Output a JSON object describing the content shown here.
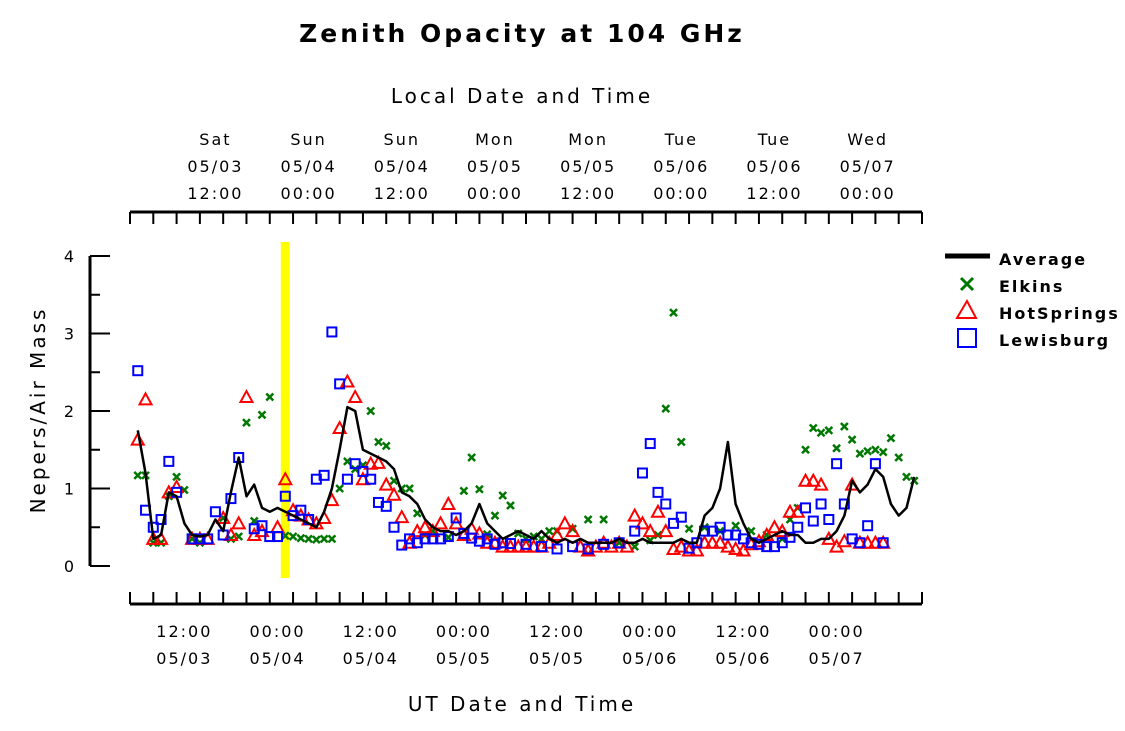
{
  "chart_data": {
    "type": "line",
    "title": "Zenith Opacity at 104 GHz",
    "xlabel": "UT Date and Time",
    "x2label": "Local Date and Time",
    "ylabel": "Nepers/Air Mass",
    "ylim": [
      0,
      4
    ],
    "yticks": [
      "0",
      "1",
      "2",
      "3",
      "4"
    ],
    "xlim": [
      "2003-05-03T05:00",
      "2003-05-07T11:00"
    ],
    "x_ticks": [
      {
        "t": "2003-05-03T12:00",
        "line1": "12:00",
        "line2": "05/03"
      },
      {
        "t": "2003-05-04T00:00",
        "line1": "00:00",
        "line2": "05/04"
      },
      {
        "t": "2003-05-04T12:00",
        "line1": "12:00",
        "line2": "05/04"
      },
      {
        "t": "2003-05-05T00:00",
        "line1": "00:00",
        "line2": "05/05"
      },
      {
        "t": "2003-05-05T12:00",
        "line1": "12:00",
        "line2": "05/05"
      },
      {
        "t": "2003-05-06T00:00",
        "line1": "00:00",
        "line2": "05/06"
      },
      {
        "t": "2003-05-06T12:00",
        "line1": "12:00",
        "line2": "05/06"
      },
      {
        "t": "2003-05-07T00:00",
        "line1": "00:00",
        "line2": "05/07"
      }
    ],
    "x2_ticks": [
      {
        "t": "2003-05-03T16:00",
        "line1": "Sat",
        "line2": "05/03",
        "line3": "12:00"
      },
      {
        "t": "2003-05-04T04:00",
        "line1": "Sun",
        "line2": "05/04",
        "line3": "00:00"
      },
      {
        "t": "2003-05-04T16:00",
        "line1": "Sun",
        "line2": "05/04",
        "line3": "12:00"
      },
      {
        "t": "2003-05-05T04:00",
        "line1": "Mon",
        "line2": "05/05",
        "line3": "00:00"
      },
      {
        "t": "2003-05-05T16:00",
        "line1": "Mon",
        "line2": "05/05",
        "line3": "12:00"
      },
      {
        "t": "2003-05-06T04:00",
        "line1": "Tue",
        "line2": "05/06",
        "line3": "00:00"
      },
      {
        "t": "2003-05-06T16:00",
        "line1": "Tue",
        "line2": "05/06",
        "line3": "12:00"
      },
      {
        "t": "2003-05-07T04:00",
        "line1": "Wed",
        "line2": "05/07",
        "line3": "00:00"
      }
    ],
    "marker_band": {
      "t": "2003-05-04T01:00",
      "color": "#ffff00"
    },
    "legend_position": "right",
    "series": [
      {
        "name": "Average",
        "style": "line",
        "color": "#000000",
        "t": [
          "2003-05-03T06:00",
          "2003-05-03T07:00",
          "2003-05-03T08:00",
          "2003-05-03T09:00",
          "2003-05-03T10:00",
          "2003-05-03T11:00",
          "2003-05-03T12:00",
          "2003-05-03T13:00",
          "2003-05-03T14:00",
          "2003-05-03T15:00",
          "2003-05-03T16:00",
          "2003-05-03T17:00",
          "2003-05-03T18:00",
          "2003-05-03T19:00",
          "2003-05-03T20:00",
          "2003-05-03T21:00",
          "2003-05-03T22:00",
          "2003-05-03T23:00",
          "2003-05-04T00:00",
          "2003-05-04T01:00",
          "2003-05-04T02:00",
          "2003-05-04T03:00",
          "2003-05-04T04:00",
          "2003-05-04T05:00",
          "2003-05-04T06:00",
          "2003-05-04T07:00",
          "2003-05-04T08:00",
          "2003-05-04T09:00",
          "2003-05-04T10:00",
          "2003-05-04T11:00",
          "2003-05-04T12:00",
          "2003-05-04T13:00",
          "2003-05-04T14:00",
          "2003-05-04T15:00",
          "2003-05-04T16:00",
          "2003-05-04T17:00",
          "2003-05-04T18:00",
          "2003-05-04T19:00",
          "2003-05-04T20:00",
          "2003-05-04T21:00",
          "2003-05-04T22:00",
          "2003-05-04T23:00",
          "2003-05-05T00:00",
          "2003-05-05T01:00",
          "2003-05-05T02:00",
          "2003-05-05T03:00",
          "2003-05-05T04:00",
          "2003-05-05T05:00",
          "2003-05-05T06:00",
          "2003-05-05T07:00",
          "2003-05-05T08:00",
          "2003-05-05T09:00",
          "2003-05-05T10:00",
          "2003-05-05T11:00",
          "2003-05-05T12:00",
          "2003-05-05T13:00",
          "2003-05-05T14:00",
          "2003-05-05T15:00",
          "2003-05-05T16:00",
          "2003-05-05T17:00",
          "2003-05-05T18:00",
          "2003-05-05T19:00",
          "2003-05-05T20:00",
          "2003-05-05T21:00",
          "2003-05-05T22:00",
          "2003-05-05T23:00",
          "2003-05-06T00:00",
          "2003-05-06T01:00",
          "2003-05-06T02:00",
          "2003-05-06T03:00",
          "2003-05-06T04:00",
          "2003-05-06T05:00",
          "2003-05-06T06:00",
          "2003-05-06T07:00",
          "2003-05-06T08:00",
          "2003-05-06T09:00",
          "2003-05-06T10:00",
          "2003-05-06T11:00",
          "2003-05-06T12:00",
          "2003-05-06T13:00",
          "2003-05-06T14:00",
          "2003-05-06T15:00",
          "2003-05-06T16:00",
          "2003-05-06T17:00",
          "2003-05-06T18:00",
          "2003-05-06T19:00",
          "2003-05-06T20:00",
          "2003-05-06T21:00",
          "2003-05-06T22:00",
          "2003-05-06T23:00",
          "2003-05-07T00:00",
          "2003-05-07T01:00",
          "2003-05-07T02:00",
          "2003-05-07T03:00",
          "2003-05-07T04:00",
          "2003-05-07T05:00",
          "2003-05-07T06:00",
          "2003-05-07T07:00",
          "2003-05-07T08:00",
          "2003-05-07T09:00",
          "2003-05-07T10:00"
        ],
        "values": [
          1.75,
          1.2,
          0.35,
          0.4,
          0.95,
          0.9,
          0.55,
          0.4,
          0.38,
          0.4,
          0.6,
          0.45,
          0.95,
          1.4,
          0.9,
          1.05,
          0.75,
          0.7,
          0.75,
          0.7,
          0.65,
          0.6,
          0.55,
          0.5,
          0.7,
          1.0,
          1.5,
          2.05,
          2.0,
          1.5,
          1.45,
          1.4,
          1.35,
          1.25,
          0.95,
          0.9,
          0.8,
          0.6,
          0.5,
          0.45,
          0.45,
          0.4,
          0.45,
          0.55,
          0.8,
          0.55,
          0.45,
          0.35,
          0.4,
          0.45,
          0.4,
          0.35,
          0.45,
          0.35,
          0.3,
          0.35,
          0.3,
          0.35,
          0.3,
          0.3,
          0.3,
          0.3,
          0.35,
          0.3,
          0.3,
          0.35,
          0.3,
          0.3,
          0.3,
          0.3,
          0.35,
          0.3,
          0.3,
          0.65,
          0.75,
          1.0,
          1.6,
          0.8,
          0.55,
          0.35,
          0.3,
          0.35,
          0.4,
          0.45,
          0.4,
          0.4,
          0.3,
          0.3,
          0.35,
          0.35,
          0.45,
          0.65,
          1.1,
          0.95,
          1.05,
          1.25,
          1.15,
          0.8,
          0.65,
          0.75,
          1.15
        ]
      },
      {
        "name": "Elkins",
        "style": "x",
        "color": "#007700",
        "t": [
          "2003-05-03T06:00",
          "2003-05-03T07:00",
          "2003-05-03T08:00",
          "2003-05-03T09:00",
          "2003-05-03T10:00",
          "2003-05-03T11:00",
          "2003-05-03T12:00",
          "2003-05-03T13:00",
          "2003-05-03T14:00",
          "2003-05-03T17:00",
          "2003-05-03T18:00",
          "2003-05-03T19:00",
          "2003-05-03T20:00",
          "2003-05-03T21:00",
          "2003-05-03T22:00",
          "2003-05-03T23:00",
          "2003-05-04T01:00",
          "2003-05-04T02:00",
          "2003-05-04T03:00",
          "2003-05-04T04:00",
          "2003-05-04T05:00",
          "2003-05-04T06:00",
          "2003-05-04T07:00",
          "2003-05-04T08:00",
          "2003-05-04T09:00",
          "2003-05-04T10:00",
          "2003-05-04T11:00",
          "2003-05-04T12:00",
          "2003-05-04T13:00",
          "2003-05-04T14:00",
          "2003-05-04T15:00",
          "2003-05-04T16:00",
          "2003-05-04T17:00",
          "2003-05-04T18:00",
          "2003-05-04T19:00",
          "2003-05-04T20:00",
          "2003-05-04T22:00",
          "2003-05-05T00:00",
          "2003-05-05T01:00",
          "2003-05-05T02:00",
          "2003-05-05T03:00",
          "2003-05-05T04:00",
          "2003-05-05T05:00",
          "2003-05-05T06:00",
          "2003-05-05T07:00",
          "2003-05-05T08:00",
          "2003-05-05T09:00",
          "2003-05-05T10:00",
          "2003-05-05T11:00",
          "2003-05-05T12:00",
          "2003-05-05T14:00",
          "2003-05-05T16:00",
          "2003-05-05T18:00",
          "2003-05-05T20:00",
          "2003-05-05T22:00",
          "2003-05-06T00:00",
          "2003-05-06T01:00",
          "2003-05-06T02:00",
          "2003-05-06T03:00",
          "2003-05-06T04:00",
          "2003-05-06T05:00",
          "2003-05-06T07:00",
          "2003-05-06T09:00",
          "2003-05-06T11:00",
          "2003-05-06T13:00",
          "2003-05-06T15:00",
          "2003-05-06T17:00",
          "2003-05-06T18:00",
          "2003-05-06T19:00",
          "2003-05-06T20:00",
          "2003-05-06T21:00",
          "2003-05-06T22:00",
          "2003-05-06T23:00",
          "2003-05-07T00:00",
          "2003-05-07T01:00",
          "2003-05-07T02:00",
          "2003-05-07T03:00",
          "2003-05-07T04:00",
          "2003-05-07T05:00",
          "2003-05-07T06:00",
          "2003-05-07T07:00",
          "2003-05-07T08:00",
          "2003-05-07T09:00",
          "2003-05-07T10:00"
        ],
        "values": [
          1.17,
          1.17,
          0.3,
          0.3,
          0.9,
          1.15,
          0.98,
          0.35,
          0.3,
          0.62,
          0.35,
          0.38,
          1.85,
          0.58,
          1.95,
          2.18,
          0.39,
          0.38,
          0.36,
          0.35,
          0.34,
          0.35,
          0.35,
          1.0,
          1.35,
          1.25,
          1.3,
          2.0,
          1.6,
          1.55,
          1.1,
          1.0,
          1.0,
          0.68,
          0.4,
          0.45,
          0.37,
          0.97,
          1.4,
          0.99,
          0.41,
          0.65,
          0.91,
          0.78,
          0.42,
          0.35,
          0.38,
          0.35,
          0.45,
          0.45,
          0.48,
          0.6,
          0.6,
          0.3,
          0.25,
          0.33,
          0.4,
          2.03,
          3.27,
          1.6,
          0.48,
          0.5,
          0.45,
          0.52,
          0.45,
          0.4,
          0.35,
          0.6,
          0.75,
          1.5,
          1.78,
          1.72,
          1.75,
          1.52,
          1.8,
          1.63,
          1.45,
          1.48,
          1.5,
          1.47,
          1.65,
          1.4,
          1.15,
          1.1
        ]
      },
      {
        "name": "HotSprings",
        "style": "triangle",
        "color": "#ff0000",
        "t": [
          "2003-05-03T06:00",
          "2003-05-03T07:00",
          "2003-05-03T08:00",
          "2003-05-03T09:00",
          "2003-05-03T10:00",
          "2003-05-03T11:00",
          "2003-05-03T13:00",
          "2003-05-03T14:00",
          "2003-05-03T15:00",
          "2003-05-03T17:00",
          "2003-05-03T18:00",
          "2003-05-03T19:00",
          "2003-05-03T20:00",
          "2003-05-03T21:00",
          "2003-05-03T22:00",
          "2003-05-04T00:00",
          "2003-05-04T01:00",
          "2003-05-04T02:00",
          "2003-05-04T03:00",
          "2003-05-04T04:00",
          "2003-05-04T05:00",
          "2003-05-04T06:00",
          "2003-05-04T07:00",
          "2003-05-04T08:00",
          "2003-05-04T09:00",
          "2003-05-04T10:00",
          "2003-05-04T11:00",
          "2003-05-04T12:00",
          "2003-05-04T13:00",
          "2003-05-04T14:00",
          "2003-05-04T15:00",
          "2003-05-04T16:00",
          "2003-05-04T17:00",
          "2003-05-04T18:00",
          "2003-05-04T19:00",
          "2003-05-04T20:00",
          "2003-05-04T21:00",
          "2003-05-04T22:00",
          "2003-05-04T23:00",
          "2003-05-05T00:00",
          "2003-05-05T01:00",
          "2003-05-05T02:00",
          "2003-05-05T03:00",
          "2003-05-05T04:00",
          "2003-05-05T05:00",
          "2003-05-05T06:00",
          "2003-05-05T07:00",
          "2003-05-05T08:00",
          "2003-05-05T09:00",
          "2003-05-05T10:00",
          "2003-05-05T11:00",
          "2003-05-05T12:00",
          "2003-05-05T13:00",
          "2003-05-05T14:00",
          "2003-05-05T15:00",
          "2003-05-05T16:00",
          "2003-05-05T17:00",
          "2003-05-05T18:00",
          "2003-05-05T19:00",
          "2003-05-05T20:00",
          "2003-05-05T21:00",
          "2003-05-05T22:00",
          "2003-05-05T23:00",
          "2003-05-06T00:00",
          "2003-05-06T01:00",
          "2003-05-06T02:00",
          "2003-05-06T03:00",
          "2003-05-06T04:00",
          "2003-05-06T05:00",
          "2003-05-06T06:00",
          "2003-05-06T07:00",
          "2003-05-06T08:00",
          "2003-05-06T09:00",
          "2003-05-06T10:00",
          "2003-05-06T11:00",
          "2003-05-06T12:00",
          "2003-05-06T13:00",
          "2003-05-06T14:00",
          "2003-05-06T15:00",
          "2003-05-06T16:00",
          "2003-05-06T17:00",
          "2003-05-06T18:00",
          "2003-05-06T19:00",
          "2003-05-06T20:00",
          "2003-05-06T21:00",
          "2003-05-06T22:00",
          "2003-05-06T23:00",
          "2003-05-07T00:00",
          "2003-05-07T01:00",
          "2003-05-07T02:00",
          "2003-05-07T03:00",
          "2003-05-07T04:00",
          "2003-05-07T05:00",
          "2003-05-07T06:00"
        ],
        "values": [
          1.63,
          2.15,
          0.35,
          0.35,
          0.95,
          1.02,
          0.35,
          0.35,
          0.35,
          0.62,
          0.4,
          0.55,
          2.18,
          0.4,
          0.45,
          0.5,
          1.12,
          0.72,
          0.65,
          0.6,
          0.55,
          0.62,
          0.85,
          1.78,
          2.38,
          2.18,
          1.12,
          1.32,
          1.33,
          1.05,
          0.92,
          0.63,
          0.3,
          0.45,
          0.5,
          0.45,
          0.55,
          0.8,
          0.55,
          0.4,
          0.48,
          0.42,
          0.3,
          0.3,
          0.25,
          0.25,
          0.25,
          0.25,
          0.25,
          0.25,
          0.3,
          0.4,
          0.55,
          0.45,
          0.25,
          0.2,
          0.25,
          0.3,
          0.25,
          0.3,
          0.25,
          0.65,
          0.55,
          0.45,
          0.7,
          0.45,
          0.22,
          0.25,
          0.2,
          0.2,
          0.3,
          0.3,
          0.3,
          0.25,
          0.22,
          0.2,
          0.28,
          0.32,
          0.4,
          0.5,
          0.45,
          0.7,
          0.7,
          1.1,
          1.1,
          1.05,
          0.35,
          0.25,
          0.32,
          1.05,
          0.3,
          0.3,
          0.3,
          0.3
        ]
      },
      {
        "name": "Lewisburg",
        "style": "square",
        "color": "#0000ff",
        "t": [
          "2003-05-03T06:00",
          "2003-05-03T07:00",
          "2003-05-03T08:00",
          "2003-05-03T09:00",
          "2003-05-03T10:00",
          "2003-05-03T11:00",
          "2003-05-03T13:00",
          "2003-05-03T14:00",
          "2003-05-03T15:00",
          "2003-05-03T16:00",
          "2003-05-03T17:00",
          "2003-05-03T18:00",
          "2003-05-03T19:00",
          "2003-05-03T21:00",
          "2003-05-03T22:00",
          "2003-05-03T23:00",
          "2003-05-04T00:00",
          "2003-05-04T01:00",
          "2003-05-04T02:00",
          "2003-05-04T03:00",
          "2003-05-04T04:00",
          "2003-05-04T05:00",
          "2003-05-04T06:00",
          "2003-05-04T07:00",
          "2003-05-04T08:00",
          "2003-05-04T09:00",
          "2003-05-04T10:00",
          "2003-05-04T11:00",
          "2003-05-04T12:00",
          "2003-05-04T13:00",
          "2003-05-04T14:00",
          "2003-05-04T15:00",
          "2003-05-04T16:00",
          "2003-05-04T17:00",
          "2003-05-04T18:00",
          "2003-05-04T19:00",
          "2003-05-04T20:00",
          "2003-05-04T21:00",
          "2003-05-04T22:00",
          "2003-05-04T23:00",
          "2003-05-05T00:00",
          "2003-05-05T01:00",
          "2003-05-05T02:00",
          "2003-05-05T03:00",
          "2003-05-05T04:00",
          "2003-05-05T05:00",
          "2003-05-05T06:00",
          "2003-05-05T08:00",
          "2003-05-05T10:00",
          "2003-05-05T12:00",
          "2003-05-05T14:00",
          "2003-05-05T16:00",
          "2003-05-05T18:00",
          "2003-05-05T20:00",
          "2003-05-05T22:00",
          "2003-05-05T23:00",
          "2003-05-06T00:00",
          "2003-05-06T01:00",
          "2003-05-06T02:00",
          "2003-05-06T03:00",
          "2003-05-06T04:00",
          "2003-05-06T05:00",
          "2003-05-06T06:00",
          "2003-05-06T07:00",
          "2003-05-06T08:00",
          "2003-05-06T09:00",
          "2003-05-06T10:00",
          "2003-05-06T11:00",
          "2003-05-06T12:00",
          "2003-05-06T13:00",
          "2003-05-06T14:00",
          "2003-05-06T15:00",
          "2003-05-06T16:00",
          "2003-05-06T17:00",
          "2003-05-06T18:00",
          "2003-05-06T19:00",
          "2003-05-06T20:00",
          "2003-05-06T21:00",
          "2003-05-06T22:00",
          "2003-05-06T23:00",
          "2003-05-07T00:00",
          "2003-05-07T01:00",
          "2003-05-07T02:00",
          "2003-05-07T03:00",
          "2003-05-07T04:00",
          "2003-05-07T05:00",
          "2003-05-07T06:00"
        ],
        "values": [
          2.52,
          0.72,
          0.5,
          0.6,
          1.35,
          0.95,
          0.35,
          0.35,
          0.35,
          0.7,
          0.4,
          0.87,
          1.4,
          0.48,
          0.52,
          0.38,
          0.38,
          0.9,
          0.65,
          0.72,
          0.6,
          1.12,
          1.17,
          3.02,
          2.35,
          1.12,
          1.32,
          1.22,
          1.12,
          0.82,
          0.77,
          0.5,
          0.27,
          0.35,
          0.3,
          0.35,
          0.35,
          0.35,
          0.38,
          0.62,
          0.42,
          0.36,
          0.32,
          0.35,
          0.28,
          0.3,
          0.29,
          0.28,
          0.25,
          0.22,
          0.25,
          0.22,
          0.28,
          0.3,
          0.45,
          1.2,
          1.58,
          0.95,
          0.8,
          0.55,
          0.63,
          0.23,
          0.3,
          0.45,
          0.45,
          0.5,
          0.4,
          0.4,
          0.35,
          0.3,
          0.28,
          0.25,
          0.25,
          0.3,
          0.37,
          0.5,
          0.75,
          0.58,
          0.8,
          0.6,
          1.32,
          0.8,
          0.35,
          0.3,
          0.52,
          1.32,
          0.3
        ]
      }
    ]
  }
}
